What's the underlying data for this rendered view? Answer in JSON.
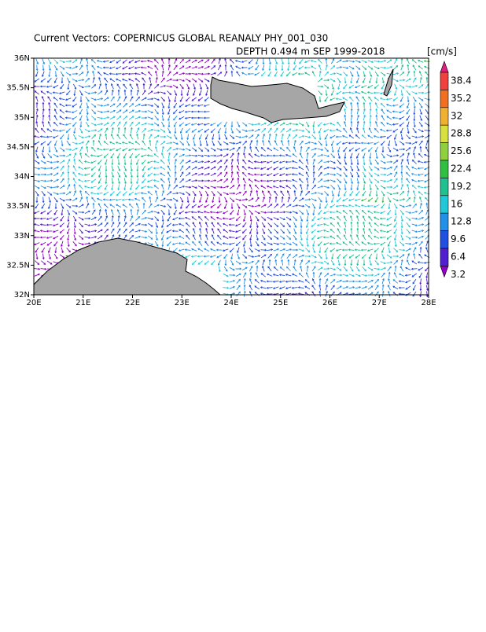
{
  "title": "Current Vectors: COPERNICUS GLOBAL REANALY PHY_001_030",
  "subtitle": "DEPTH 0.494 m  SEP 1999-2018",
  "units": "[cm/s]",
  "lat_ticks": [
    "36N",
    "35.5N",
    "35N",
    "34.5N",
    "34N",
    "33.5N",
    "33N",
    "32.5N",
    "32N"
  ],
  "lon_ticks": [
    "20E",
    "21E",
    "22E",
    "23E",
    "24E",
    "25E",
    "26E",
    "27E",
    "28E"
  ],
  "colorbar": {
    "labels": [
      38.4,
      35.2,
      32,
      28.8,
      25.6,
      22.4,
      19.2,
      16,
      12.8,
      9.6,
      6.4,
      3.2
    ],
    "colors": [
      "#e0207f",
      "#f04040",
      "#f07020",
      "#f0b030",
      "#d8e040",
      "#90d040",
      "#30c040",
      "#20c090",
      "#20c8d8",
      "#2090e8",
      "#2050e0",
      "#5020d0",
      "#9000c8"
    ]
  }
}
